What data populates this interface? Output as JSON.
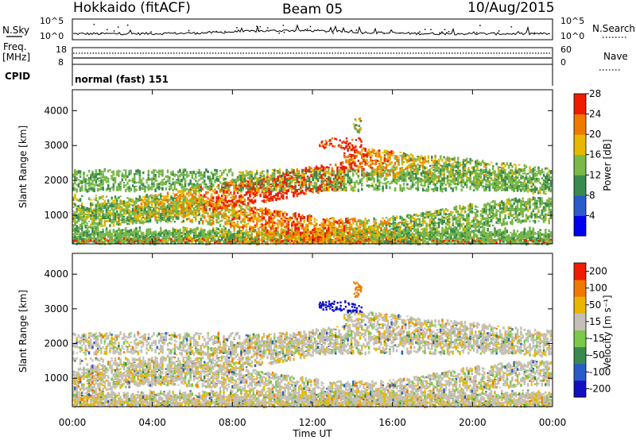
{
  "header": {
    "station": "Hokkaido (fitACF)",
    "beam": "Beam 05",
    "date": "10/Aug/2015"
  },
  "top_panels": {
    "nsky_label": "N.Sky",
    "nsky_ticks": [
      "10^5",
      "10^0"
    ],
    "nsearch_label": "N.Search",
    "nsearch_ticks": [
      "10^5",
      "10^0"
    ],
    "freq_label": "Freq.",
    "freq_unit": "[MHz]",
    "freq_ticks": [
      "18",
      "8"
    ],
    "nave_label": "Nave",
    "nave_ticks": [
      "60",
      "0"
    ],
    "cpid_label": "CPID",
    "cpid_value": "normal (fast) 151"
  },
  "chart_data": [
    {
      "type": "heatmap",
      "name": "power",
      "ylabel": "Slant Range [km]",
      "ylim": [
        180,
        4600
      ],
      "yticks": [
        "1000",
        "2000",
        "3000",
        "4000"
      ],
      "xlim_hours": [
        0,
        24
      ],
      "xticks": [
        "00:00",
        "04:00",
        "08:00",
        "12:00",
        "16:00",
        "20:00",
        "00:00"
      ],
      "colorbar_label": "Power [dB]",
      "colorbar_ticks": [
        "4",
        "8",
        "12",
        "16",
        "20",
        "24",
        "28"
      ],
      "colors": [
        "#0000ee",
        "#2a5bc8",
        "#3a8a50",
        "#7ab84a",
        "#e8b800",
        "#f07a00",
        "#ee1c00"
      ]
    },
    {
      "type": "heatmap",
      "name": "velocity",
      "ylabel": "Slant Range [km]",
      "ylim": [
        180,
        4600
      ],
      "yticks": [
        "1000",
        "2000",
        "3000",
        "4000"
      ],
      "xlim_hours": [
        0,
        24
      ],
      "xticks": [
        "00:00",
        "04:00",
        "08:00",
        "12:00",
        "16:00",
        "20:00",
        "00:00"
      ],
      "xlabel": "Time UT",
      "colorbar_label": "Velocity [m s⁻¹]",
      "colorbar_ticks": [
        "200",
        "100",
        "50",
        "15",
        "-15",
        "-50",
        "-100",
        "-200"
      ],
      "colors": [
        "#1010c0",
        "#2a5bc8",
        "#3a8a50",
        "#7cc84a",
        "#c4c0b8",
        "#e8b800",
        "#f07a00",
        "#ee1c00"
      ]
    }
  ]
}
